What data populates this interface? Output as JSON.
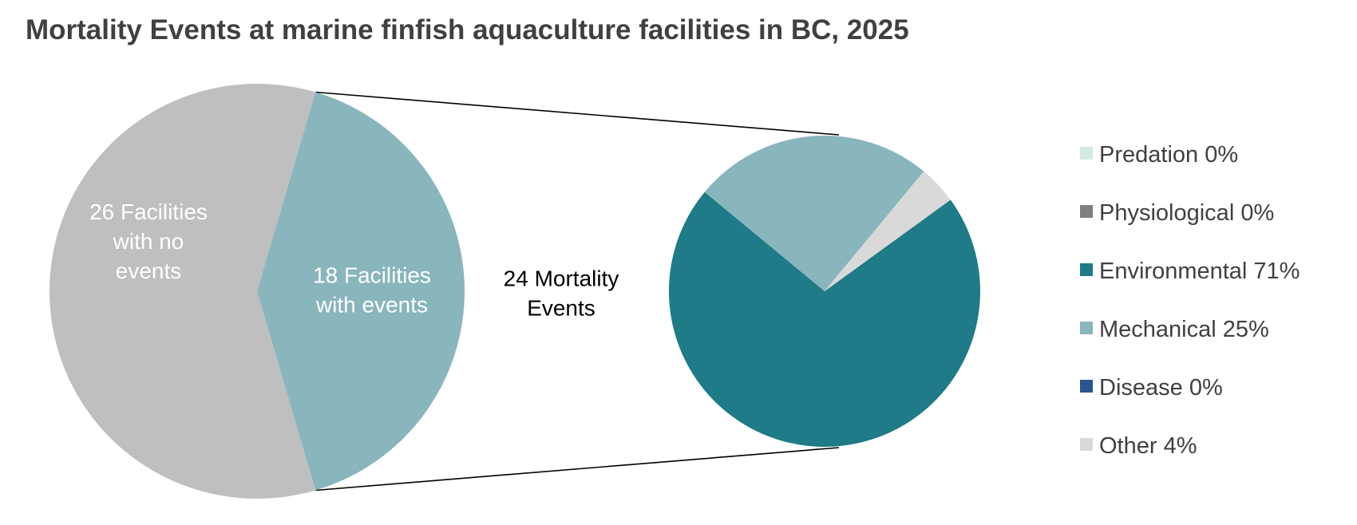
{
  "title": "Mortality Events at marine finfish aquaculture facilities in BC, 2025",
  "chart_data": {
    "type": "pie",
    "title": "Mortality Events at marine finfish aquaculture facilities in BC, 2025",
    "primary": {
      "slices": [
        {
          "label": "18 Facilities with events",
          "lines": [
            "18 Facilities",
            "with events"
          ],
          "value": 18,
          "color": "#89b5bd"
        },
        {
          "label": "26 Facilities with no events",
          "lines": [
            "26 Facilities",
            "with no",
            "events"
          ],
          "value": 26,
          "color": "#bfbfbf"
        }
      ]
    },
    "connector_label": {
      "text": "24 Mortality Events",
      "lines": [
        "24 Mortality",
        "Events"
      ]
    },
    "secondary": {
      "slices": [
        {
          "name": "Predation",
          "percent": 0,
          "color": "#d3e9e5"
        },
        {
          "name": "Physiological",
          "percent": 0,
          "color": "#7f7f7f"
        },
        {
          "name": "Environmental",
          "percent": 71,
          "color": "#1e7b87"
        },
        {
          "name": "Mechanical",
          "percent": 25,
          "color": "#89b5bd"
        },
        {
          "name": "Disease",
          "percent": 0,
          "color": "#2a5591"
        },
        {
          "name": "Other",
          "percent": 4,
          "color": "#d9d9d9"
        }
      ]
    },
    "legend": {
      "position": "right",
      "entries": [
        "Predation 0%",
        "Physiological 0%",
        "Environmental 71%",
        "Mechanical 25%",
        "Disease 0%",
        "Other 4%"
      ]
    }
  }
}
